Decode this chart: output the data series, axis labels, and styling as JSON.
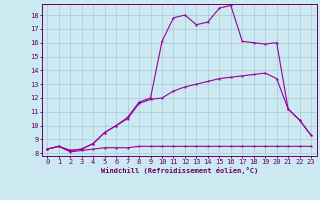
{
  "xlabel": "Windchill (Refroidissement éolien,°C)",
  "background_color": "#cce8f0",
  "grid_color": "#aac8d8",
  "line_color": "#990099",
  "xlim": [
    -0.5,
    23.5
  ],
  "ylim": [
    7.8,
    18.8
  ],
  "xticks": [
    0,
    1,
    2,
    3,
    4,
    5,
    6,
    7,
    8,
    9,
    10,
    11,
    12,
    13,
    14,
    15,
    16,
    17,
    18,
    19,
    20,
    21,
    22,
    23
  ],
  "yticks": [
    8,
    9,
    10,
    11,
    12,
    13,
    14,
    15,
    16,
    17,
    18
  ],
  "line1_x": [
    0,
    1,
    2,
    3,
    4,
    5,
    6,
    7,
    8,
    9,
    10,
    11,
    12,
    13,
    14,
    15,
    16,
    17,
    18,
    19,
    20,
    21,
    22,
    23
  ],
  "line1_y": [
    8.3,
    8.5,
    8.1,
    8.2,
    8.3,
    8.4,
    8.4,
    8.4,
    8.5,
    8.5,
    8.5,
    8.5,
    8.5,
    8.5,
    8.5,
    8.5,
    8.5,
    8.5,
    8.5,
    8.5,
    8.5,
    8.5,
    8.5,
    8.5
  ],
  "line2_x": [
    0,
    1,
    2,
    3,
    4,
    5,
    6,
    7,
    8,
    9,
    10,
    11,
    12,
    13,
    14,
    15,
    16,
    17,
    18,
    19,
    20,
    21,
    22,
    23
  ],
  "line2_y": [
    8.3,
    8.5,
    8.2,
    8.3,
    8.7,
    9.5,
    10.0,
    10.5,
    11.6,
    11.9,
    12.0,
    12.5,
    12.8,
    13.0,
    13.2,
    13.4,
    13.5,
    13.6,
    13.7,
    13.8,
    13.4,
    11.2,
    10.4,
    9.3
  ],
  "line3_x": [
    0,
    1,
    2,
    3,
    4,
    5,
    6,
    7,
    8,
    9,
    10,
    11,
    12,
    13,
    14,
    15,
    16,
    17,
    18,
    19,
    20,
    21,
    22,
    23
  ],
  "line3_y": [
    8.3,
    8.5,
    8.2,
    8.3,
    8.7,
    9.5,
    10.0,
    10.6,
    11.7,
    12.0,
    16.1,
    17.8,
    18.0,
    17.3,
    17.5,
    18.5,
    18.7,
    16.1,
    16.0,
    15.9,
    16.0,
    11.2,
    10.4,
    9.3
  ],
  "xlabel_fontsize": 5.0,
  "tick_fontsize": 5.0
}
